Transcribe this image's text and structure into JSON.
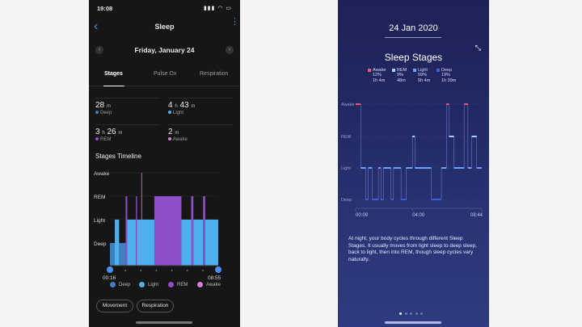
{
  "left": {
    "status": {
      "time": "19:08",
      "icons": "▮▮▮ ◠ ▭"
    },
    "nav": {
      "title": "Sleep",
      "back": "‹",
      "more": "⋮"
    },
    "date": "Friday, January 24",
    "tabs": [
      "Stages",
      "Pulse Ox",
      "Respiration"
    ],
    "stats": [
      {
        "value": "28",
        "unit": "m",
        "label": "Deep",
        "color": "#3f7fc0"
      },
      {
        "value": "4",
        "unit": "h",
        "value2": "43",
        "unit2": "m",
        "label": "Light",
        "color": "#4fb0f0"
      },
      {
        "value": "3",
        "unit": "h",
        "value2": "26",
        "unit2": "m",
        "label": "REM",
        "color": "#8e4fc8"
      },
      {
        "value": "2",
        "unit": "m",
        "label": "Awake",
        "color": "#e07bd8"
      }
    ],
    "timeline_title": "Stages Timeline",
    "chart_data": {
      "type": "area",
      "title": "Stages Timeline",
      "y_levels": [
        "Awake",
        "REM",
        "Light",
        "Deep"
      ],
      "x_start": "00:16",
      "x_end": "08:55",
      "colors": {
        "Deep": "#3f7fc0",
        "Light": "#4fb0f0",
        "REM": "#8e4fc8",
        "Awake": "#e07bd8"
      },
      "segments": [
        {
          "stage": "Deep",
          "start": 0.0,
          "end": 0.045
        },
        {
          "stage": "Light",
          "start": 0.045,
          "end": 0.085
        },
        {
          "stage": "Deep",
          "start": 0.085,
          "end": 0.145
        },
        {
          "stage": "REM",
          "start": 0.145,
          "end": 0.16
        },
        {
          "stage": "Light",
          "start": 0.16,
          "end": 0.24
        },
        {
          "stage": "REM",
          "start": 0.24,
          "end": 0.25
        },
        {
          "stage": "Light",
          "start": 0.25,
          "end": 0.29
        },
        {
          "stage": "Awake",
          "start": 0.29,
          "end": 0.295
        },
        {
          "stage": "Light",
          "start": 0.295,
          "end": 0.41
        },
        {
          "stage": "REM",
          "start": 0.41,
          "end": 0.66
        },
        {
          "stage": "Light",
          "start": 0.66,
          "end": 0.75
        },
        {
          "stage": "REM",
          "start": 0.75,
          "end": 0.77
        },
        {
          "stage": "Light",
          "start": 0.77,
          "end": 0.86
        },
        {
          "stage": "REM",
          "start": 0.86,
          "end": 0.88
        },
        {
          "stage": "Light",
          "start": 0.88,
          "end": 1.0
        }
      ]
    },
    "legend": [
      {
        "label": "Deep",
        "color": "#3f7fc0"
      },
      {
        "label": "Light",
        "color": "#4fb0f0"
      },
      {
        "label": "REM",
        "color": "#8e4fc8"
      },
      {
        "label": "Awake",
        "color": "#e07bd8"
      }
    ],
    "pills": [
      "Movement",
      "Respiration"
    ]
  },
  "right": {
    "date": "24 Jan 2020",
    "title": "Sleep Stages",
    "collapse_icon": "⤡",
    "legend": [
      {
        "label": "Awake",
        "pct": "12%",
        "dur": "1h 4m",
        "color": "#f0557a"
      },
      {
        "label": "REM",
        "pct": "9%",
        "dur": "48m",
        "color": "#9fd7ff"
      },
      {
        "label": "Light",
        "pct": "59%",
        "dur": "5h 4m",
        "color": "#6aa2ff"
      },
      {
        "label": "Deep",
        "pct": "19%",
        "dur": "1h 39m",
        "color": "#3b5fe0"
      }
    ],
    "chart_data": {
      "type": "line",
      "title": "Sleep Stages",
      "y_levels": [
        "Awake",
        "REM",
        "Light",
        "Deep"
      ],
      "x_ticks": [
        "00:09",
        "04:00",
        "08:44"
      ],
      "points": [
        {
          "t": 0.0,
          "stage": "Awake"
        },
        {
          "t": 0.04,
          "stage": "Light"
        },
        {
          "t": 0.08,
          "stage": "Deep"
        },
        {
          "t": 0.1,
          "stage": "Light"
        },
        {
          "t": 0.13,
          "stage": "Deep"
        },
        {
          "t": 0.18,
          "stage": "Light"
        },
        {
          "t": 0.2,
          "stage": "Deep"
        },
        {
          "t": 0.22,
          "stage": "Light"
        },
        {
          "t": 0.28,
          "stage": "Deep"
        },
        {
          "t": 0.3,
          "stage": "Light"
        },
        {
          "t": 0.36,
          "stage": "Deep"
        },
        {
          "t": 0.4,
          "stage": "Light"
        },
        {
          "t": 0.45,
          "stage": "REM"
        },
        {
          "t": 0.47,
          "stage": "Light"
        },
        {
          "t": 0.6,
          "stage": "Deep"
        },
        {
          "t": 0.68,
          "stage": "Light"
        },
        {
          "t": 0.72,
          "stage": "Awake"
        },
        {
          "t": 0.74,
          "stage": "REM"
        },
        {
          "t": 0.78,
          "stage": "Light"
        },
        {
          "t": 0.86,
          "stage": "Awake"
        },
        {
          "t": 0.89,
          "stage": "Light"
        },
        {
          "t": 0.92,
          "stage": "REM"
        },
        {
          "t": 0.96,
          "stage": "Light"
        },
        {
          "t": 1.0,
          "stage": "Light"
        }
      ]
    },
    "description": "At night, your body cycles through different Sleep Stages. It usually moves from light sleep to deep sleep, back to light, then into REM, though sleep cycles vary naturally.",
    "page_dots": 5,
    "active_dot": 0
  }
}
